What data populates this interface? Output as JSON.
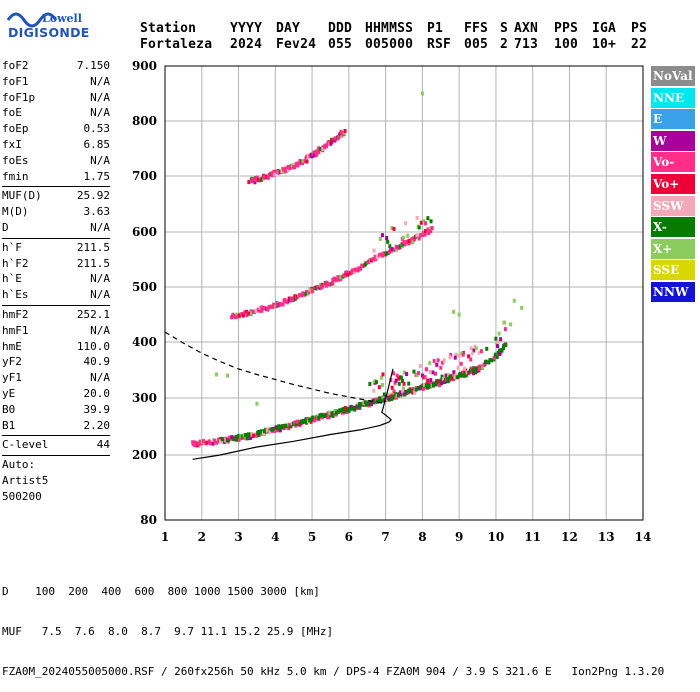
{
  "logo": {
    "line1": "Lowell",
    "line2": "DIGISONDE"
  },
  "header": {
    "columns": [
      "Station",
      "YYYY",
      "DAY",
      "DDD",
      "HHMMSS",
      "P1",
      "FFS",
      "S",
      "AXN",
      "PPS",
      "IGA",
      "PS"
    ],
    "values": [
      "Fortaleza",
      "2024",
      "Fev24",
      "055",
      "005000",
      "RSF",
      "005",
      "2",
      "713",
      "100",
      "10+",
      "22"
    ]
  },
  "params": {
    "group1": [
      {
        "name": "foF2",
        "value": "7.150"
      },
      {
        "name": "foF1",
        "value": "N/A"
      },
      {
        "name": "foF1p",
        "value": "N/A"
      },
      {
        "name": "foE",
        "value": "N/A"
      },
      {
        "name": "foEp",
        "value": "0.53"
      },
      {
        "name": "fxI",
        "value": "6.85"
      },
      {
        "name": "foEs",
        "value": "N/A"
      },
      {
        "name": "fmin",
        "value": "1.75"
      }
    ],
    "group2": [
      {
        "name": "MUF(D)",
        "value": "25.92"
      },
      {
        "name": "M(D)",
        "value": "3.63"
      },
      {
        "name": "D",
        "value": "N/A"
      }
    ],
    "group3": [
      {
        "name": "h`F",
        "value": "211.5"
      },
      {
        "name": "h`F2",
        "value": "211.5"
      },
      {
        "name": "h`E",
        "value": "N/A"
      },
      {
        "name": "h`Es",
        "value": "N/A"
      }
    ],
    "group4": [
      {
        "name": "hmF2",
        "value": "252.1"
      },
      {
        "name": "hmF1",
        "value": "N/A"
      },
      {
        "name": "hmE",
        "value": "110.0"
      },
      {
        "name": "yF2",
        "value": "40.9"
      },
      {
        "name": "yF1",
        "value": "N/A"
      },
      {
        "name": "yE",
        "value": "20.0"
      },
      {
        "name": "B0",
        "value": "39.9"
      },
      {
        "name": "B1",
        "value": "2.20"
      }
    ],
    "group5": [
      {
        "name": "C-level",
        "value": "44"
      }
    ],
    "auto_lines": [
      "Auto:",
      "Artist5",
      "500200"
    ]
  },
  "legend": [
    {
      "label": "NoVal",
      "color": "#8c8c8c"
    },
    {
      "label": "NNE",
      "color": "#00e5ee"
    },
    {
      "label": "E",
      "color": "#3aa0e8"
    },
    {
      "label": "W",
      "color": "#a8009c"
    },
    {
      "label": "Vo-",
      "color": "#ff2e88"
    },
    {
      "label": "Vo+",
      "color": "#ee0038"
    },
    {
      "label": "SSW",
      "color": "#f4a9b8"
    },
    {
      "label": "X-",
      "color": "#087a00"
    },
    {
      "label": "X+",
      "color": "#8ccc5e"
    },
    {
      "label": "SSE",
      "color": "#d8d800"
    },
    {
      "label": "NNW",
      "color": "#1414d0"
    }
  ],
  "footer": {
    "line1": "D    100  200  400  600  800 1000 1500 3000 [km]",
    "line2": "MUF   7.5  7.6  8.0  8.7  9.7 11.1 15.2 25.9 [MHz]",
    "line3": "FZA0M_2024055005000.RSF / 260fx256h 50 kHz 5.0 km / DPS-4 FZA0M 904 / 3.9 S 321.6 E   Ion2Png 1.3.20"
  },
  "chart_data": {
    "type": "scatter",
    "xlim": [
      1,
      14
    ],
    "ylim": [
      80,
      900
    ],
    "xticks": [
      1,
      2,
      3,
      4,
      5,
      6,
      7,
      8,
      9,
      10,
      11,
      12,
      13,
      14
    ],
    "yticks": [
      80,
      200,
      300,
      400,
      500,
      600,
      700,
      800,
      900
    ],
    "grid": true,
    "traces": [
      {
        "name": "first-hop-o",
        "color": "#ff2e88",
        "points": [
          [
            1.75,
            218
          ],
          [
            2.0,
            219
          ],
          [
            2.5,
            222
          ],
          [
            3.0,
            227
          ],
          [
            3.5,
            234
          ],
          [
            4.0,
            242
          ],
          [
            4.5,
            251
          ],
          [
            5.0,
            260
          ],
          [
            5.5,
            268
          ],
          [
            6.0,
            277
          ],
          [
            6.4,
            286
          ],
          [
            6.8,
            293
          ],
          [
            7.2,
            300
          ],
          [
            7.6,
            308
          ],
          [
            8.0,
            318
          ],
          [
            8.4,
            326
          ],
          [
            8.8,
            334
          ],
          [
            9.2,
            344
          ],
          [
            9.6,
            354
          ]
        ]
      },
      {
        "name": "first-hop-x",
        "color": "#087a00",
        "points": [
          [
            2.5,
            223
          ],
          [
            3.0,
            228
          ],
          [
            3.5,
            235
          ],
          [
            4.0,
            244
          ],
          [
            4.5,
            252
          ],
          [
            5.0,
            261
          ],
          [
            5.5,
            270
          ],
          [
            6.0,
            279
          ],
          [
            6.5,
            289
          ],
          [
            7.0,
            297
          ],
          [
            7.5,
            306
          ],
          [
            8.0,
            317
          ],
          [
            8.5,
            327
          ],
          [
            9.0,
            338
          ],
          [
            9.5,
            349
          ],
          [
            10.0,
            372
          ],
          [
            10.3,
            398
          ]
        ]
      },
      {
        "name": "second-hop",
        "color": "#ff2e88",
        "points": [
          [
            2.8,
            445
          ],
          [
            3.2,
            450
          ],
          [
            3.6,
            457
          ],
          [
            4.0,
            465
          ],
          [
            4.4,
            475
          ],
          [
            4.8,
            487
          ],
          [
            5.2,
            498
          ],
          [
            5.6,
            510
          ],
          [
            6.0,
            523
          ],
          [
            6.4,
            537
          ],
          [
            6.8,
            552
          ],
          [
            7.2,
            566
          ],
          [
            7.6,
            580
          ],
          [
            8.0,
            592
          ],
          [
            8.3,
            605
          ]
        ]
      },
      {
        "name": "third-hop",
        "color": "#ff2e88",
        "points": [
          [
            3.3,
            688
          ],
          [
            3.6,
            694
          ],
          [
            3.9,
            700
          ],
          [
            4.2,
            708
          ],
          [
            4.5,
            716
          ],
          [
            4.8,
            726
          ],
          [
            5.1,
            740
          ],
          [
            5.4,
            755
          ],
          [
            5.7,
            768
          ],
          [
            5.9,
            780
          ]
        ]
      }
    ],
    "profile_curve": [
      [
        1.75,
        192
      ],
      [
        2.5,
        200
      ],
      [
        3.5,
        214
      ],
      [
        4.5,
        224
      ],
      [
        5.5,
        236
      ],
      [
        6.3,
        244
      ],
      [
        6.85,
        252
      ],
      [
        7.1,
        258
      ],
      [
        7.15,
        262
      ],
      [
        7.0,
        270
      ],
      [
        6.9,
        275
      ],
      [
        6.95,
        287
      ],
      [
        7.05,
        312
      ],
      [
        7.2,
        352
      ]
    ],
    "dashed_curve": [
      [
        1.0,
        418
      ],
      [
        1.5,
        398
      ],
      [
        2.0,
        380
      ],
      [
        2.5,
        365
      ],
      [
        3.0,
        352
      ],
      [
        3.5,
        342
      ],
      [
        4.0,
        333
      ],
      [
        4.5,
        324
      ],
      [
        5.0,
        316
      ],
      [
        5.5,
        308
      ],
      [
        6.0,
        302
      ],
      [
        6.5,
        296
      ],
      [
        7.0,
        290
      ]
    ],
    "scattered_points": [
      [
        2.4,
        342
      ],
      [
        2.7,
        340
      ],
      [
        3.5,
        290
      ],
      [
        8.0,
        850
      ],
      [
        10.4,
        432
      ],
      [
        10.5,
        475
      ],
      [
        10.7,
        462
      ],
      [
        9.0,
        450
      ],
      [
        8.85,
        455
      ]
    ]
  }
}
